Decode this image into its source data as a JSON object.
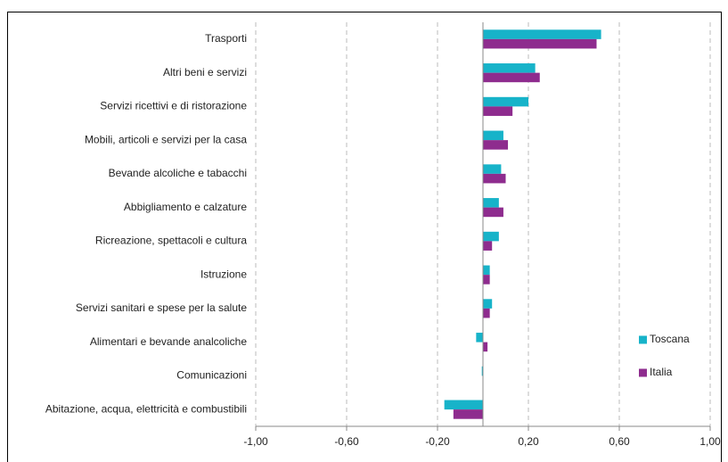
{
  "chart_data": {
    "type": "hbar",
    "categories": [
      "Trasporti",
      "Altri beni e servizi",
      "Servizi ricettivi e di ristorazione",
      "Mobili, articoli e servizi per la casa",
      "Bevande alcoliche e tabacchi",
      "Abbigliamento e calzature",
      "Ricreazione, spettacoli e cultura",
      "Istruzione",
      "Servizi sanitari e spese per la salute",
      "Alimentari e bevande analcoliche",
      "Comunicazioni",
      "Abitazione, acqua, elettricità e combustibili"
    ],
    "series": [
      {
        "name": "Toscana",
        "color": "#17b3c9",
        "values": [
          0.52,
          0.23,
          0.2,
          0.09,
          0.08,
          0.07,
          0.07,
          0.03,
          0.04,
          -0.03,
          -0.005,
          -0.17
        ]
      },
      {
        "name": "Italia",
        "color": "#8e2c8e",
        "values": [
          0.5,
          0.25,
          0.13,
          0.11,
          0.1,
          0.09,
          0.04,
          0.03,
          0.03,
          0.02,
          0,
          -0.13
        ]
      }
    ],
    "xlim": [
      -1,
      1
    ],
    "xticks": [
      {
        "value": -1,
        "label": "-1,00"
      },
      {
        "value": -0.6,
        "label": "-0,60"
      },
      {
        "value": -0.2,
        "label": "-0,20"
      },
      {
        "value": 0.2,
        "label": "0,20"
      },
      {
        "value": 0.6,
        "label": "0,60"
      },
      {
        "value": 1,
        "label": "1,00"
      }
    ],
    "grid": true,
    "legend_position": "right"
  }
}
